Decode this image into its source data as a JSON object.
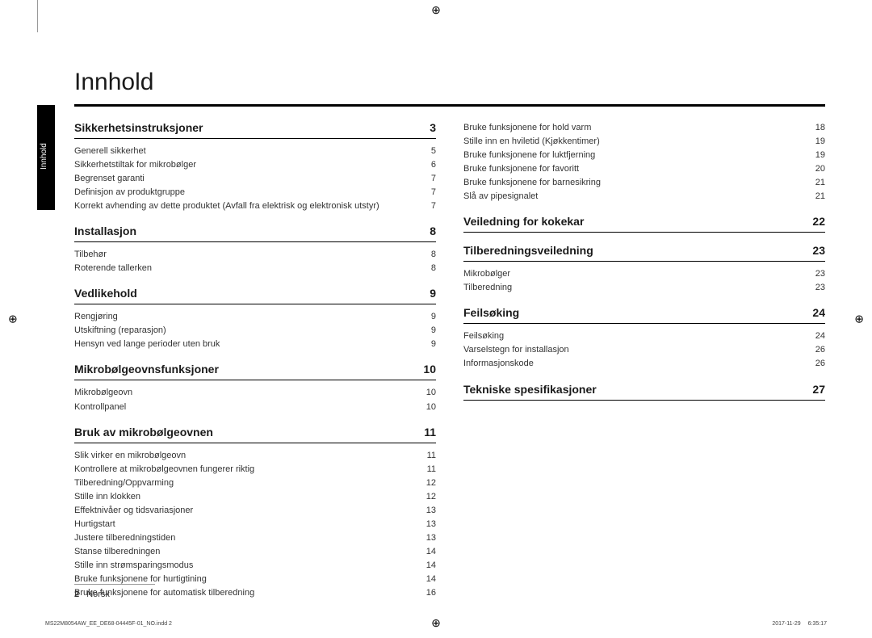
{
  "title": "Innhold",
  "side_tab_label": "Innhold",
  "footer": {
    "page_number": "2",
    "lang": "Norsk"
  },
  "print_meta": {
    "left": "MS22M8054AW_EE_DE68-04445F-01_NO.indd   2",
    "right": "2017-11-29   ⠀ 6:35:17"
  },
  "left_col": [
    {
      "heading": "Sikkerhetsinstruksjoner",
      "page": "3",
      "entries": [
        {
          "label": "Generell sikkerhet",
          "page": "5"
        },
        {
          "label": "Sikkerhetstiltak for mikrobølger",
          "page": "6"
        },
        {
          "label": "Begrenset garanti",
          "page": "7"
        },
        {
          "label": "Definisjon av produktgruppe",
          "page": "7"
        },
        {
          "label": "Korrekt avhending av dette produktet (Avfall fra elektrisk og elektronisk utstyr)",
          "page": "7"
        }
      ]
    },
    {
      "heading": "Installasjon",
      "page": "8",
      "entries": [
        {
          "label": "Tilbehør",
          "page": "8"
        },
        {
          "label": "Roterende tallerken",
          "page": "8"
        }
      ]
    },
    {
      "heading": "Vedlikehold",
      "page": "9",
      "entries": [
        {
          "label": "Rengjøring",
          "page": "9"
        },
        {
          "label": "Utskiftning (reparasjon)",
          "page": "9"
        },
        {
          "label": "Hensyn ved lange perioder uten bruk",
          "page": "9"
        }
      ]
    },
    {
      "heading": "Mikrobølgeovnsfunksjoner",
      "page": "10",
      "entries": [
        {
          "label": "Mikrobølgeovn",
          "page": "10"
        },
        {
          "label": "Kontrollpanel",
          "page": "10"
        }
      ]
    },
    {
      "heading": "Bruk av mikrobølgeovnen",
      "page": "11",
      "entries": [
        {
          "label": "Slik virker en mikrobølgeovn",
          "page": "11"
        },
        {
          "label": "Kontrollere at mikrobølgeovnen fungerer riktig",
          "page": "11"
        },
        {
          "label": "Tilberedning/Oppvarming",
          "page": "12"
        },
        {
          "label": "Stille inn klokken",
          "page": "12"
        },
        {
          "label": "Effektnivåer og tidsvariasjoner",
          "page": "13"
        },
        {
          "label": "Hurtigstart",
          "page": "13"
        },
        {
          "label": "Justere tilberedningstiden",
          "page": "13"
        },
        {
          "label": "Stanse tilberedningen",
          "page": "14"
        },
        {
          "label": "Stille inn strømsparingsmodus",
          "page": "14"
        },
        {
          "label": "Bruke funksjonene for hurtigtining",
          "page": "14"
        },
        {
          "label": "Bruke funksjonene for automatisk tilberedning",
          "page": "16"
        }
      ]
    }
  ],
  "right_col": [
    {
      "heading": null,
      "page": null,
      "entries": [
        {
          "label": "Bruke funksjonene for hold varm",
          "page": "18"
        },
        {
          "label": "Stille inn en hviletid (Kjøkkentimer)",
          "page": "19"
        },
        {
          "label": "Bruke funksjonene for luktfjerning",
          "page": "19"
        },
        {
          "label": "Bruke funksjonene for favoritt",
          "page": "20"
        },
        {
          "label": "Bruke funksjonene for barnesikring",
          "page": "21"
        },
        {
          "label": "Slå av pipesignalet",
          "page": "21"
        }
      ]
    },
    {
      "heading": "Veiledning for kokekar",
      "page": "22",
      "entries": []
    },
    {
      "heading": "Tilberedningsveiledning",
      "page": "23",
      "entries": [
        {
          "label": "Mikrobølger",
          "page": "23"
        },
        {
          "label": "Tilberedning",
          "page": "23"
        }
      ]
    },
    {
      "heading": "Feilsøking",
      "page": "24",
      "entries": [
        {
          "label": "Feilsøking",
          "page": "24"
        },
        {
          "label": "Varselstegn for installasjon",
          "page": "26"
        },
        {
          "label": "Informasjonskode",
          "page": "26"
        }
      ]
    },
    {
      "heading": "Tekniske spesifikasjoner",
      "page": "27",
      "entries": []
    }
  ]
}
